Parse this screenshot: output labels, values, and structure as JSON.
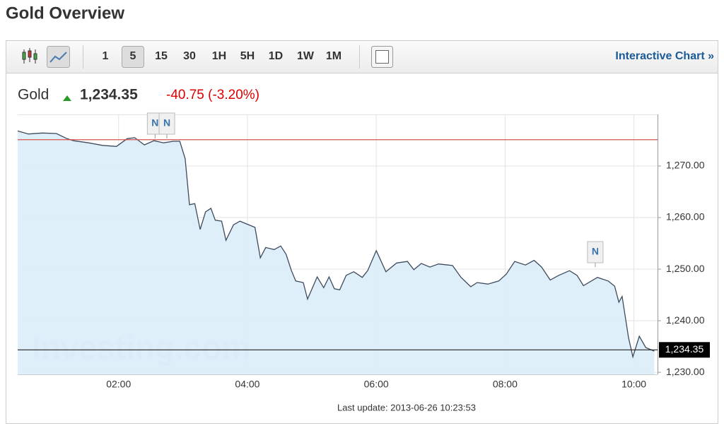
{
  "header": {
    "title": "Gold Overview"
  },
  "toolbar": {
    "intervals": [
      "1",
      "5",
      "15",
      "30",
      "1H",
      "5H",
      "1D",
      "1W",
      "1M"
    ],
    "selected": "5",
    "link": "Interactive Chart »"
  },
  "quote": {
    "name": "Gold",
    "price": "1,234.35",
    "change": "-40.75 (-3.20%)"
  },
  "watermark": "Investing.com",
  "footer": "Last update: 2013-06-26 10:23:53",
  "chart_data": {
    "type": "area",
    "x": [
      "00:26",
      "00:36",
      "00:49",
      "01:02",
      "01:12",
      "01:18",
      "01:32",
      "01:45",
      "01:58",
      "02:08",
      "02:15",
      "02:24",
      "02:33",
      "02:42",
      "02:51",
      "02:57",
      "03:02",
      "03:06",
      "03:11",
      "03:16",
      "03:21",
      "03:26",
      "03:30",
      "03:36",
      "03:40",
      "03:47",
      "03:53",
      "04:07",
      "04:12",
      "04:17",
      "04:25",
      "04:31",
      "04:36",
      "04:41",
      "04:45",
      "04:52",
      "04:56",
      "05:05",
      "05:11",
      "05:16",
      "05:21",
      "05:26",
      "05:32",
      "05:39",
      "05:47",
      "05:52",
      "06:00",
      "06:09",
      "06:19",
      "06:29",
      "06:35",
      "06:42",
      "06:50",
      "06:58",
      "07:11",
      "07:19",
      "07:28",
      "07:34",
      "07:44",
      "07:54",
      "08:01",
      "08:09",
      "08:19",
      "08:27",
      "08:34",
      "08:42",
      "08:50",
      "09:00",
      "09:07",
      "09:13",
      "09:26",
      "09:36",
      "09:42",
      "09:46",
      "09:49",
      "09:55",
      "09:59",
      "10:05",
      "10:11",
      "10:19"
    ],
    "series": [
      {
        "name": "Gold",
        "color": "#3d4a5c",
        "fill": "#dcedf9",
        "values": [
          1276.8,
          1276.2,
          1276.4,
          1276.3,
          1275.3,
          1274.9,
          1274.5,
          1274.0,
          1273.8,
          1275.3,
          1275.5,
          1274.1,
          1274.9,
          1274.5,
          1274.8,
          1274.8,
          1271.4,
          1262.5,
          1262.7,
          1257.7,
          1261.1,
          1261.8,
          1259.5,
          1259.3,
          1255.6,
          1258.6,
          1259.3,
          1258.1,
          1252.2,
          1254.2,
          1253.8,
          1254.5,
          1252.9,
          1249.7,
          1247.7,
          1247.4,
          1244.2,
          1248.5,
          1246.4,
          1248.5,
          1246.2,
          1246.0,
          1248.8,
          1249.5,
          1248.4,
          1249.7,
          1253.6,
          1249.5,
          1251.2,
          1251.5,
          1249.9,
          1251.1,
          1250.4,
          1251.0,
          1250.7,
          1248.4,
          1246.6,
          1247.4,
          1247.1,
          1247.7,
          1249.0,
          1251.5,
          1250.8,
          1251.7,
          1250.4,
          1247.9,
          1248.8,
          1249.7,
          1248.8,
          1246.8,
          1248.4,
          1247.7,
          1246.7,
          1243.6,
          1244.7,
          1236.7,
          1233.0,
          1237.0,
          1234.8,
          1234.1
        ]
      }
    ],
    "xlim": [
      "00:26",
      "10:22"
    ],
    "xticks": [
      "02:00",
      "04:00",
      "06:00",
      "08:00",
      "10:00"
    ],
    "ylim": [
      1229.6,
      1280
    ],
    "yticks": [
      {
        "value": 1230,
        "label": "1,230.00"
      },
      {
        "value": 1240,
        "label": "1,240.00"
      },
      {
        "value": 1250,
        "label": "1,250.00"
      },
      {
        "value": 1260,
        "label": "1,260.00"
      },
      {
        "value": 1270,
        "label": "1,270.00"
      }
    ],
    "grid": true,
    "previous_close": {
      "value": 1275.1,
      "color": "#d9534f"
    },
    "last": {
      "value": 1234.35,
      "label": "1,234.35"
    },
    "annotations": [
      {
        "label": "N",
        "x": "02:34"
      },
      {
        "label": "N",
        "x": "02:45"
      },
      {
        "label": "N",
        "x": "09:24"
      }
    ]
  }
}
